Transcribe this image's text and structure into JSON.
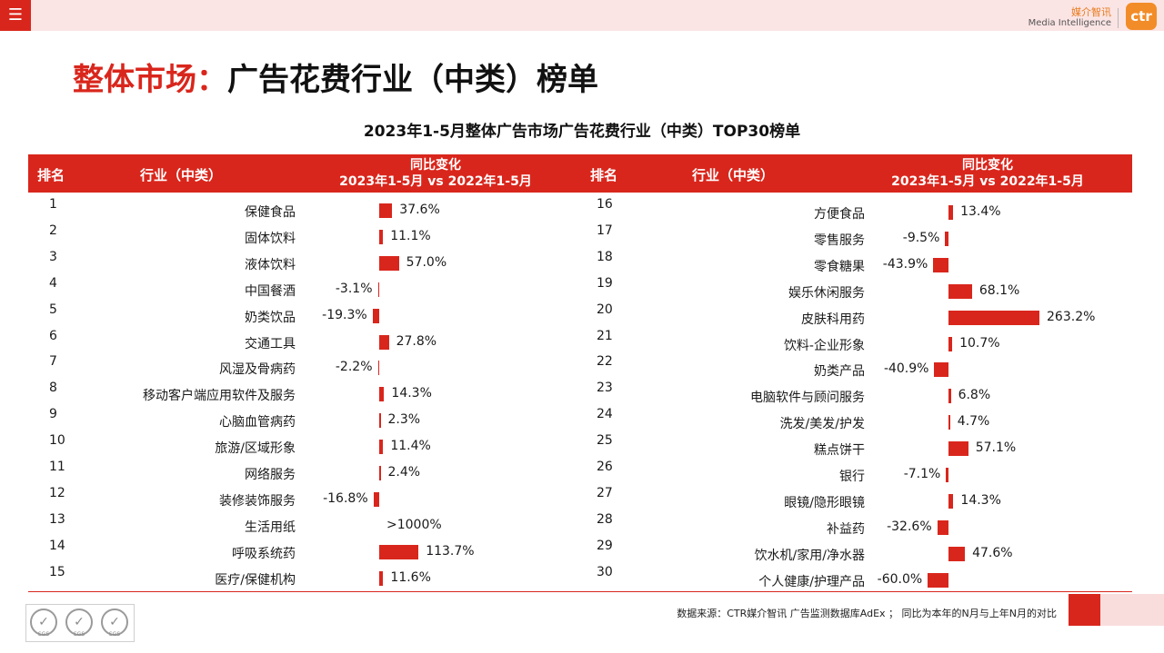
{
  "header": {
    "menu_icon": "hamburger-icon",
    "brand_cn": "媒介智讯",
    "brand_en": "Media Intelligence",
    "logo_text": "ctr"
  },
  "page_title": {
    "accent": "整体市场：",
    "main": "广告花费行业（中类）榜单"
  },
  "colors": {
    "accent": "#d9261c",
    "bar": "#d9261c",
    "header_bg": "#d9261c",
    "topbar_bg": "#fbe4e4",
    "logo_bg": "#f28c28"
  },
  "table_header": {
    "rank": "排名",
    "industry": "行业（中类）",
    "change_line1": "同比变化",
    "change_line2": "2023年1-5月 vs 2022年1-5月"
  },
  "chart_data": {
    "type": "bar",
    "orientation": "horizontal",
    "title": "2023年1-5月整体广告市场广告花费行业（中类）TOP30榜单",
    "unit": "%",
    "rows": [
      {
        "rank": "1",
        "industry": "保健食品",
        "value": 37.6,
        "label": "37.6%"
      },
      {
        "rank": "2",
        "industry": "固体饮料",
        "value": 11.1,
        "label": "11.1%"
      },
      {
        "rank": "3",
        "industry": "液体饮料",
        "value": 57.0,
        "label": "57.0%"
      },
      {
        "rank": "4",
        "industry": "中国餐酒",
        "value": -3.1,
        "label": "-3.1%"
      },
      {
        "rank": "5",
        "industry": "奶类饮品",
        "value": -19.3,
        "label": "-19.3%"
      },
      {
        "rank": "6",
        "industry": "交通工具",
        "value": 27.8,
        "label": "27.8%"
      },
      {
        "rank": "7",
        "industry": "风湿及骨病药",
        "value": -2.2,
        "label": "-2.2%"
      },
      {
        "rank": "8",
        "industry": "移动客户端应用软件及服务",
        "value": 14.3,
        "label": "14.3%"
      },
      {
        "rank": "9",
        "industry": "心脑血管病药",
        "value": 2.3,
        "label": "2.3%"
      },
      {
        "rank": "10",
        "industry": "旅游/区域形象",
        "value": 11.4,
        "label": "11.4%"
      },
      {
        "rank": "11",
        "industry": "网络服务",
        "value": 2.4,
        "label": "2.4%"
      },
      {
        "rank": "12",
        "industry": "装修装饰服务",
        "value": -16.8,
        "label": "-16.8%"
      },
      {
        "rank": "13",
        "industry": "生活用纸",
        "value": null,
        "label": ">1000%"
      },
      {
        "rank": "14",
        "industry": "呼吸系统药",
        "value": 113.7,
        "label": "113.7%"
      },
      {
        "rank": "15",
        "industry": "医疗/保健机构",
        "value": 11.6,
        "label": "11.6%"
      },
      {
        "rank": "16",
        "industry": "方便食品",
        "value": 13.4,
        "label": "13.4%"
      },
      {
        "rank": "17",
        "industry": "零售服务",
        "value": -9.5,
        "label": "-9.5%"
      },
      {
        "rank": "18",
        "industry": "零食糖果",
        "value": -43.9,
        "label": "-43.9%"
      },
      {
        "rank": "19",
        "industry": "娱乐休闲服务",
        "value": 68.1,
        "label": "68.1%"
      },
      {
        "rank": "20",
        "industry": "皮肤科用药",
        "value": 263.2,
        "label": "263.2%"
      },
      {
        "rank": "21",
        "industry": "饮料-企业形象",
        "value": 10.7,
        "label": "10.7%"
      },
      {
        "rank": "22",
        "industry": "奶类产品",
        "value": -40.9,
        "label": "-40.9%"
      },
      {
        "rank": "23",
        "industry": "电脑软件与顾问服务",
        "value": 6.8,
        "label": "6.8%"
      },
      {
        "rank": "24",
        "industry": "洗发/美发/护发",
        "value": 4.7,
        "label": "4.7%"
      },
      {
        "rank": "25",
        "industry": "糕点饼干",
        "value": 57.1,
        "label": "57.1%"
      },
      {
        "rank": "26",
        "industry": "银行",
        "value": -7.1,
        "label": "-7.1%"
      },
      {
        "rank": "27",
        "industry": "眼镜/隐形眼镜",
        "value": 14.3,
        "label": "14.3%"
      },
      {
        "rank": "28",
        "industry": "补益药",
        "value": -32.6,
        "label": "-32.6%"
      },
      {
        "rank": "29",
        "industry": "饮水机/家用/净水器",
        "value": 47.6,
        "label": "47.6%"
      },
      {
        "rank": "30",
        "industry": "个人健康/护理产品",
        "value": -60.0,
        "label": "-60.0%"
      }
    ]
  },
  "footer": {
    "source": "数据来源：CTR媒介智讯 广告监测数据库AdEx ；  同比为本年的N月与上年N月的对比",
    "badges": [
      "SGS",
      "SGS",
      "SGS"
    ],
    "badge_icon": "check-circle-icon"
  }
}
